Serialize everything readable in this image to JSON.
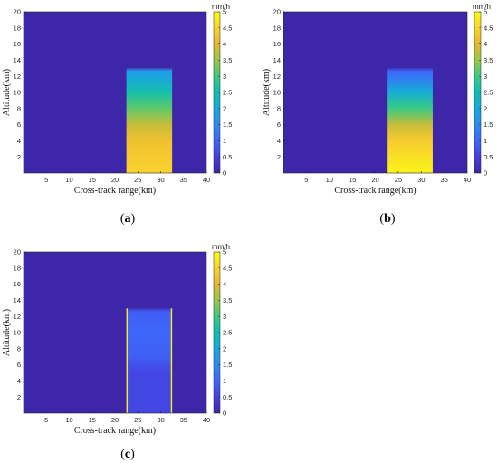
{
  "chart_data": [
    {
      "type": "heatmap",
      "caption_open": "(",
      "caption_letter": "a",
      "caption_close": ")",
      "xlabel": "Cross-track range(km)",
      "ylabel": "Altitude(km)",
      "xlim": [
        0,
        40
      ],
      "ylim": [
        0,
        20
      ],
      "xticks": [
        5,
        10,
        15,
        20,
        25,
        30,
        35,
        40
      ],
      "yticks": [
        2,
        4,
        6,
        8,
        10,
        12,
        14,
        16,
        18,
        20
      ],
      "colorbar": {
        "unit": "mm/h",
        "range": [
          0,
          5
        ],
        "ticks": [
          "0",
          "0.5",
          "1",
          "1.5",
          "2",
          "2.5",
          "3",
          "3.5",
          "4",
          "4.5",
          "5"
        ]
      },
      "background_value": 0,
      "rain_column": {
        "x_range": [
          22.5,
          32.5
        ],
        "top_km": 13,
        "profile": [
          {
            "altitude_km": 0,
            "value": 4.5
          },
          {
            "altitude_km": 4,
            "value": 4.2
          },
          {
            "altitude_km": 6,
            "value": 3.8
          },
          {
            "altitude_km": 8,
            "value": 3.2
          },
          {
            "altitude_km": 10,
            "value": 2.6
          },
          {
            "altitude_km": 12,
            "value": 1.9
          },
          {
            "altitude_km": 13,
            "value": 1.6
          }
        ]
      }
    },
    {
      "type": "heatmap",
      "caption_open": "(",
      "caption_letter": "b",
      "caption_close": ")",
      "xlabel": "Cross-track range(km)",
      "ylabel": "Altitude(km)",
      "xlim": [
        0,
        40
      ],
      "ylim": [
        0,
        20
      ],
      "xticks": [
        5,
        10,
        15,
        20,
        25,
        30,
        35,
        40
      ],
      "yticks": [
        2,
        4,
        6,
        8,
        10,
        12,
        14,
        16,
        18,
        20
      ],
      "colorbar": {
        "unit": "mm/h",
        "range": [
          0,
          5
        ],
        "ticks": [
          "0",
          "0.5",
          "1",
          "1.5",
          "2",
          "2.5",
          "3",
          "3.5",
          "4",
          "4.5",
          "5"
        ]
      },
      "background_value": 0,
      "rain_column": {
        "x_range": [
          22.5,
          32.5
        ],
        "top_km": 13,
        "profile": [
          {
            "altitude_km": 0,
            "value": 4.9
          },
          {
            "altitude_km": 4,
            "value": 4.4
          },
          {
            "altitude_km": 6,
            "value": 3.8
          },
          {
            "altitude_km": 8,
            "value": 3.0
          },
          {
            "altitude_km": 10,
            "value": 2.1
          },
          {
            "altitude_km": 12,
            "value": 1.2
          },
          {
            "altitude_km": 13,
            "value": 0.9
          }
        ]
      }
    },
    {
      "type": "heatmap",
      "caption_open": "(",
      "caption_letter": "c",
      "caption_close": ")",
      "xlabel": "Cross-track range(km)",
      "ylabel": "Altitude(km)",
      "xlim": [
        0,
        40
      ],
      "ylim": [
        0,
        20
      ],
      "xticks": [
        5,
        10,
        15,
        20,
        25,
        30,
        35,
        40
      ],
      "yticks": [
        2,
        4,
        6,
        8,
        10,
        12,
        14,
        16,
        18,
        20
      ],
      "colorbar": {
        "unit": "mm/h",
        "range": [
          0,
          5
        ],
        "ticks": [
          "0",
          "0.5",
          "1",
          "1.5",
          "2",
          "2.5",
          "3",
          "3.5",
          "4",
          "4.5",
          "5"
        ]
      },
      "background_value": 0,
      "rain_column": {
        "x_range": [
          22.5,
          32.5
        ],
        "top_km": 13,
        "edge_value": 4.8,
        "profile": [
          {
            "altitude_km": 0,
            "value": 0.6
          },
          {
            "altitude_km": 5,
            "value": 0.6
          },
          {
            "altitude_km": 7,
            "value": 0.9
          },
          {
            "altitude_km": 10,
            "value": 1.0
          },
          {
            "altitude_km": 12.5,
            "value": 0.9
          },
          {
            "altitude_km": 13,
            "value": 0.7
          }
        ]
      }
    }
  ]
}
